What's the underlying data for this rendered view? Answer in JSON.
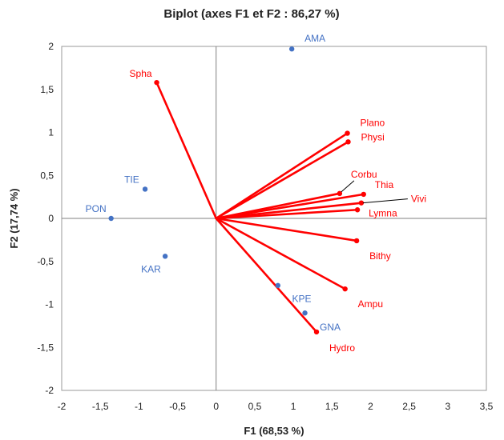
{
  "chart_data": {
    "type": "scatter",
    "title": "Biplot (axes F1 et F2 : 86,27 %)",
    "xlabel": "F1 (68,53 %)",
    "ylabel": "F2 (17,74 %)",
    "xlim": [
      -2,
      3.5
    ],
    "ylim": [
      -2,
      2
    ],
    "xticks": [
      -2,
      -1.5,
      -1,
      -0.5,
      0,
      0.5,
      1,
      1.5,
      2,
      2.5,
      3,
      3.5
    ],
    "xtick_labels": [
      "-2",
      "-1,5",
      "-1",
      "-0,5",
      "0",
      "0,5",
      "1",
      "1,5",
      "2",
      "2,5",
      "3",
      "3,5"
    ],
    "yticks": [
      -2,
      -1.5,
      -1,
      -0.5,
      0,
      0.5,
      1,
      1.5,
      2
    ],
    "ytick_labels": [
      "-2",
      "-1,5",
      "-1",
      "-0,5",
      "0",
      "0,5",
      "1",
      "1,5",
      "2"
    ],
    "grid": false,
    "colors": {
      "variables": "#ff0000",
      "observations": "#4472c4",
      "leader": "#000000"
    },
    "observations": [
      {
        "name": "AMA",
        "x": 0.98,
        "y": 1.97
      },
      {
        "name": "TIE",
        "x": -0.92,
        "y": 0.34
      },
      {
        "name": "PON",
        "x": -1.36,
        "y": 0.0
      },
      {
        "name": "KAR",
        "x": -0.66,
        "y": -0.44
      },
      {
        "name": "",
        "x": 0.8,
        "y": -0.78
      },
      {
        "name": "KPE",
        "x": 1.15,
        "y": -1.1
      },
      {
        "name": "GNA",
        "x": "",
        "y": ""
      }
    ],
    "variables": [
      {
        "name": "Spha",
        "x": -0.77,
        "y": 1.58
      },
      {
        "name": "Plano",
        "x": 1.7,
        "y": 0.99
      },
      {
        "name": "Physi",
        "x": 1.71,
        "y": 0.89
      },
      {
        "name": "Corbu",
        "x": 1.6,
        "y": 0.29
      },
      {
        "name": "Thia",
        "x": 1.91,
        "y": 0.28
      },
      {
        "name": "Vivi",
        "x": 1.88,
        "y": 0.18
      },
      {
        "name": "Lymna",
        "x": 1.83,
        "y": 0.1
      },
      {
        "name": "Bithy",
        "x": 1.82,
        "y": -0.26
      },
      {
        "name": "Ampu",
        "x": 1.67,
        "y": -0.82
      },
      {
        "name": "Hydro",
        "x": 1.3,
        "y": -1.32
      }
    ]
  }
}
